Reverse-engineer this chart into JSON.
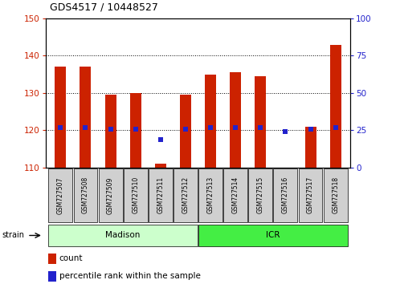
{
  "title": "GDS4517 / 10448527",
  "samples": [
    "GSM727507",
    "GSM727508",
    "GSM727509",
    "GSM727510",
    "GSM727511",
    "GSM727512",
    "GSM727513",
    "GSM727514",
    "GSM727515",
    "GSM727516",
    "GSM727517",
    "GSM727518"
  ],
  "count_values": [
    137,
    137,
    129.5,
    130,
    111,
    129.5,
    135,
    135.5,
    134.5,
    110,
    121,
    143
  ],
  "percentile_values": [
    27,
    27,
    26,
    26,
    19,
    26,
    27,
    27,
    27,
    24,
    26,
    27
  ],
  "ylim_left": [
    110,
    150
  ],
  "ylim_right": [
    0,
    100
  ],
  "yticks_left": [
    110,
    120,
    130,
    140,
    150
  ],
  "yticks_right": [
    0,
    25,
    50,
    75,
    100
  ],
  "bar_color": "#cc2200",
  "dot_color": "#2222cc",
  "bar_bottom": 110,
  "strain_groups": [
    {
      "label": "Madison",
      "start": 0,
      "end": 5,
      "color": "#ccffcc"
    },
    {
      "label": "ICR",
      "start": 6,
      "end": 11,
      "color": "#44ee44"
    }
  ],
  "legend_items": [
    {
      "color": "#cc2200",
      "label": "count"
    },
    {
      "color": "#2222cc",
      "label": "percentile rank within the sample"
    }
  ],
  "grid_color": "black",
  "grid_style": "dotted",
  "background_color": "#ffffff",
  "tick_label_color_left": "#cc2200",
  "tick_label_color_right": "#2222cc",
  "box_color": "#d0d0d0",
  "title_fontsize": 9,
  "bar_width": 0.45,
  "label_fontsize": 5.5,
  "strain_fontsize": 7.5,
  "legend_fontsize": 7.5
}
